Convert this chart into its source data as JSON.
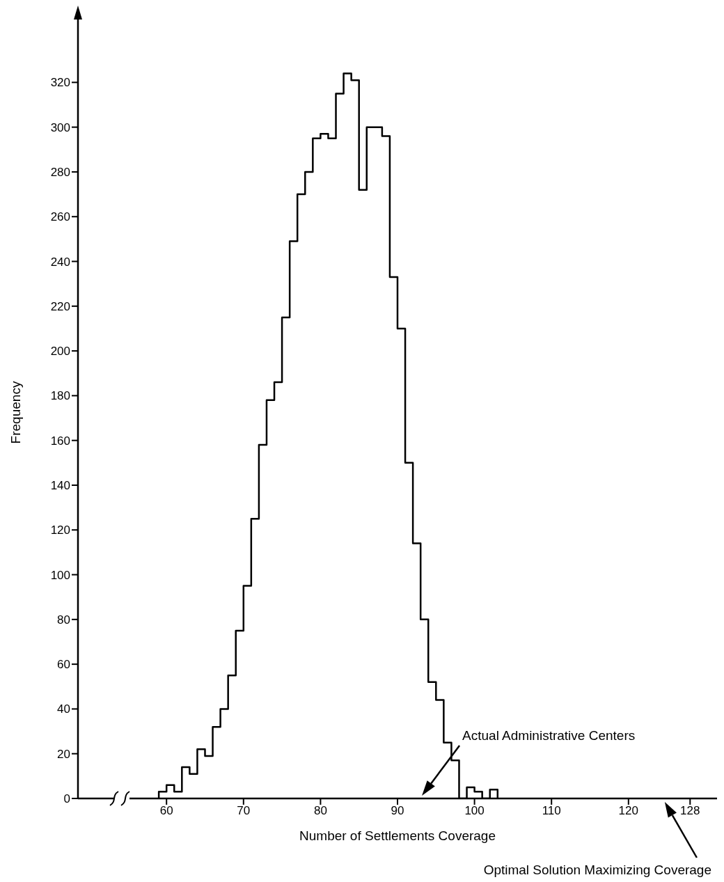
{
  "chart_data": {
    "type": "histogram",
    "xlabel": "Number of Settlements Coverage",
    "ylabel": "Frequency",
    "bins": [
      59,
      60,
      61,
      62,
      63,
      64,
      65,
      66,
      67,
      68,
      69,
      70,
      71,
      72,
      73,
      74,
      75,
      76,
      77,
      78,
      79,
      80,
      81,
      82,
      83,
      84,
      85,
      86,
      87,
      88,
      89,
      90,
      91,
      92,
      93,
      94,
      95,
      96,
      97,
      98,
      99,
      100,
      101,
      102,
      103
    ],
    "values": [
      3,
      6,
      3,
      14,
      11,
      22,
      19,
      32,
      40,
      55,
      75,
      95,
      125,
      158,
      178,
      186,
      215,
      249,
      270,
      280,
      295,
      297,
      295,
      315,
      324,
      321,
      272,
      300,
      300,
      296,
      233,
      210,
      150,
      114,
      80,
      52,
      44,
      25,
      17,
      0,
      5,
      3,
      0,
      4
    ],
    "color": "#000000",
    "xlim": [
      48.5,
      131.5
    ],
    "xticks": [
      60,
      70,
      80,
      90,
      100,
      110,
      120,
      128
    ],
    "ylim": [
      0,
      345
    ],
    "yticks": [
      0,
      20,
      40,
      60,
      80,
      100,
      120,
      140,
      160,
      180,
      200,
      220,
      240,
      260,
      280,
      300,
      320
    ],
    "annotations": [
      "Actual Administrative Centers",
      "Optimal Solution Maximizing Coverage"
    ]
  }
}
